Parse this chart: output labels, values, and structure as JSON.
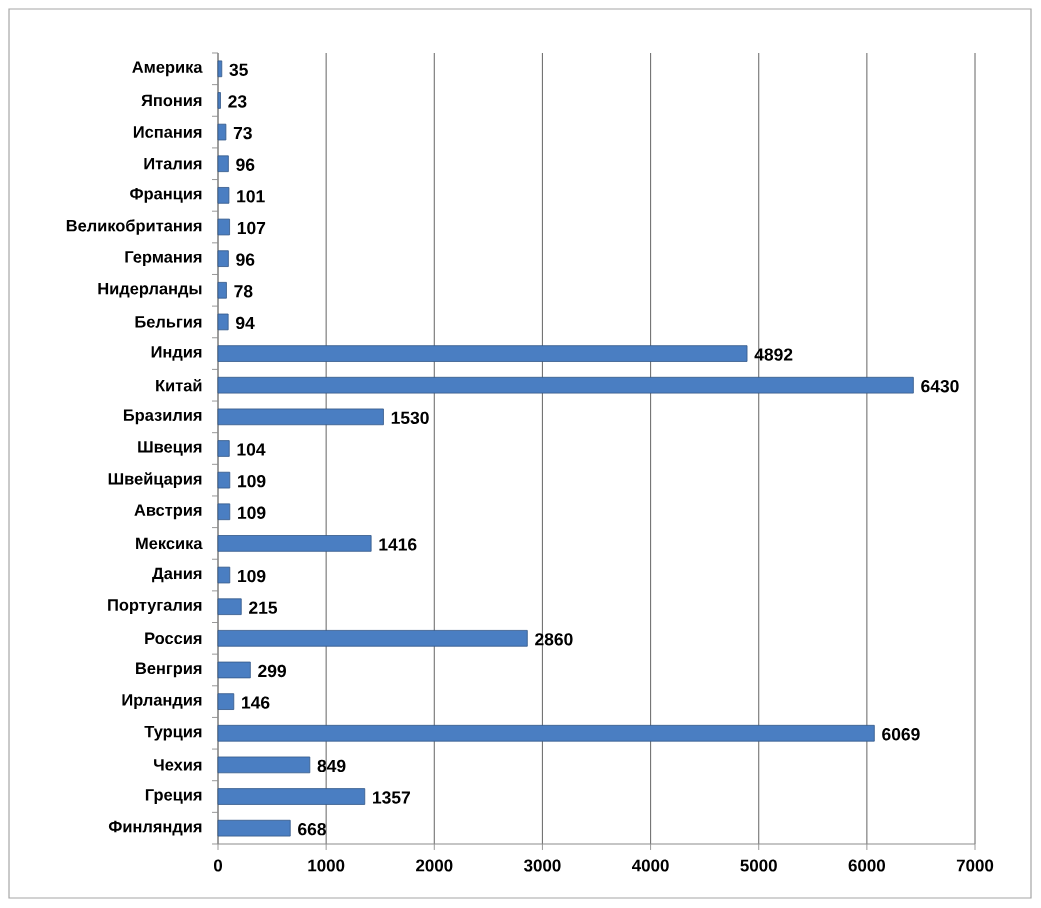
{
  "chart_data": {
    "type": "bar",
    "orientation": "horizontal",
    "categories": [
      "Америка",
      "Япония",
      "Испания",
      "Италия",
      "Франция",
      "Великобритания",
      "Германия",
      "Нидерланды",
      "Бельгия",
      "Индия",
      "Китай",
      "Бразилия",
      "Швеция",
      "Швейцария",
      "Австрия",
      "Мексика",
      "Дания",
      "Португалия",
      "Россия",
      "Венгрия",
      "Ирландия",
      "Турция",
      "Чехия",
      "Греция",
      "Финляндия"
    ],
    "values": [
      35,
      23,
      73,
      96,
      101,
      107,
      96,
      78,
      94,
      4892,
      6430,
      1530,
      104,
      109,
      109,
      1416,
      109,
      215,
      2860,
      299,
      146,
      6069,
      849,
      1357,
      668
    ],
    "color": "#4a7ec2",
    "xlim": [
      0,
      7000
    ],
    "xticks": [
      0,
      1000,
      2000,
      3000,
      4000,
      5000,
      6000,
      7000
    ],
    "grid": "x",
    "data_labels": true
  }
}
